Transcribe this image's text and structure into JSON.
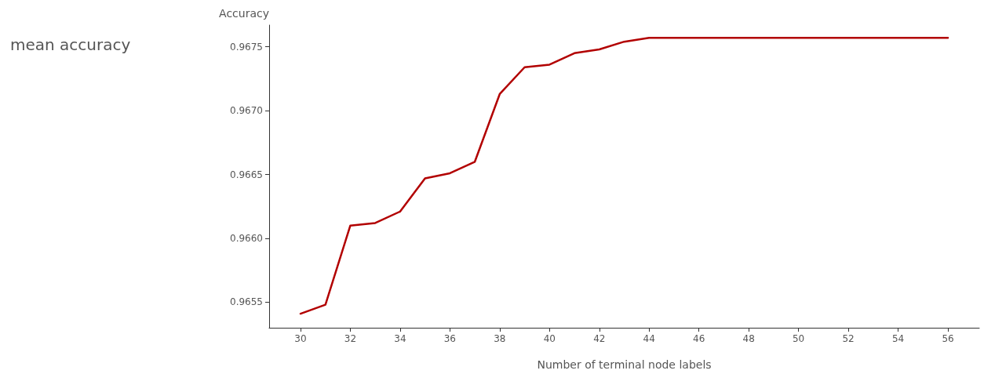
{
  "chart_data": {
    "type": "line",
    "title": "mean accuracy",
    "xlabel": "Number of terminal node labels",
    "ylabel": "Accuracy",
    "x": [
      30,
      31,
      32,
      33,
      34,
      35,
      36,
      37,
      38,
      39,
      40,
      41,
      42,
      43,
      44,
      45,
      46,
      47,
      48,
      49,
      50,
      51,
      52,
      53,
      54,
      55,
      56
    ],
    "series": [
      {
        "color": "#b20000",
        "values": [
          0.96541,
          0.96548,
          0.9661,
          0.96612,
          0.96621,
          0.96647,
          0.96651,
          0.9666,
          0.96713,
          0.96734,
          0.96736,
          0.96745,
          0.96748,
          0.96754,
          0.96757,
          0.96757,
          0.96757,
          0.96757,
          0.96757,
          0.96757,
          0.96757,
          0.96757,
          0.96757,
          0.96757,
          0.96757,
          0.96757,
          0.96757
        ]
      }
    ],
    "xlim": [
      28.74,
      57.26
    ],
    "xticks": [
      30,
      32,
      34,
      36,
      38,
      40,
      42,
      44,
      46,
      48,
      50,
      52,
      54,
      56
    ],
    "ylim": [
      0.9653,
      0.96767
    ],
    "yticks": [
      0.9655,
      {
        "value": 0.966,
        "label": "0.9660"
      },
      0.9665,
      {
        "value": 0.967,
        "label": "0.9670"
      },
      0.9675
    ],
    "grid": false,
    "marker": "none",
    "line_style": "solid"
  }
}
